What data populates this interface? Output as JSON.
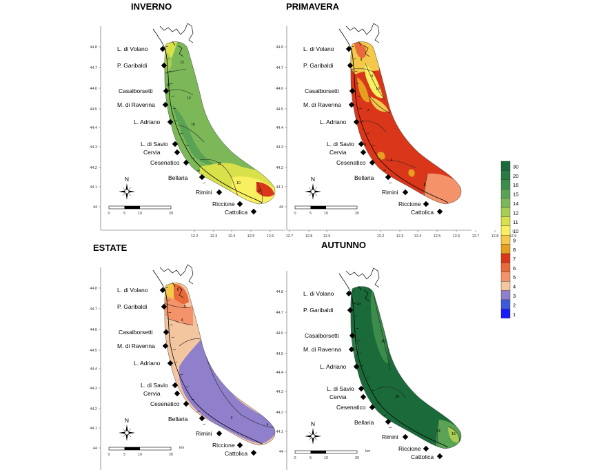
{
  "colors": {
    "1": "#1a1aff",
    "2": "#3d5bd6",
    "3": "#9080cc",
    "4": "#f4c6a0",
    "5": "#f4936a",
    "6": "#e86a3c",
    "7": "#d9361a",
    "8": "#e6a020",
    "9": "#f4c84a",
    "10": "#f8f060",
    "11": "#d8e04a",
    "12": "#a8cc54",
    "14": "#7cb858",
    "15": "#5aa254",
    "16": "#3c8c4c",
    "20": "#2a7a44",
    "30": "#1a6a3a"
  },
  "legend": {
    "levels": [
      "30",
      "20",
      "16",
      "15",
      "14",
      "12",
      "11",
      "10",
      "9",
      "8",
      "7",
      "6",
      "5",
      "4",
      "3",
      "2",
      "1"
    ]
  },
  "towns": [
    "L. di Volano",
    "P. Garibaldi",
    "Casalborsetti",
    "M. di Ravenna",
    "L. Adriano",
    "L. di Savio",
    "Cervia",
    "Cesenatico",
    "Bellaria",
    "Rimini",
    "Riccione",
    "Cattolica"
  ],
  "lat_ticks": [
    "44.8",
    "44.7",
    "44.6",
    "44.5",
    "44.4",
    "44.3",
    "44.2",
    "44.1",
    "44"
  ],
  "lon_ticks": [
    "12.2",
    "12.3",
    "12.4",
    "12.5",
    "12.6",
    "12.7",
    "12.8",
    "12.9"
  ],
  "scalebar": {
    "labels": [
      "0",
      "5",
      "10",
      "20"
    ],
    "unit": "km"
  },
  "north_label": "N",
  "panels": [
    {
      "id": "inverno",
      "title": "INVERNO",
      "contours": [
        "12",
        "10",
        "12",
        "16",
        "12",
        "10",
        "12"
      ]
    },
    {
      "id": "primavera",
      "title": "PRIMAVERA",
      "contours": [
        "8",
        "9",
        "10",
        "7",
        "6",
        "6",
        "5"
      ]
    },
    {
      "id": "estate",
      "title": "ESTATE",
      "contours": [
        "6",
        "5",
        "4",
        "3",
        "4"
      ]
    },
    {
      "id": "autunno",
      "title": "AUTUNNO",
      "contours": [
        "20",
        "20",
        "20",
        "14",
        "16"
      ]
    }
  ]
}
